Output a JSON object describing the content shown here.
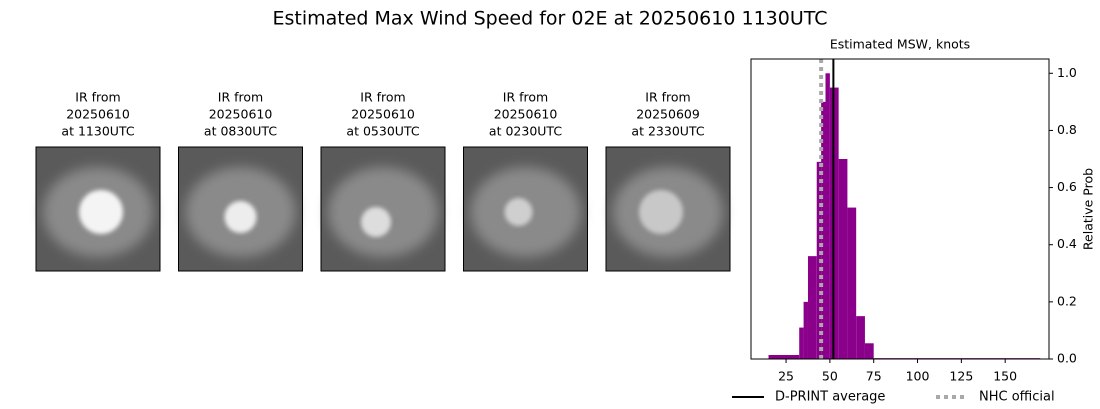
{
  "title": "Estimated Max Wind Speed for 02E at 20250610 1130UTC",
  "panels": [
    {
      "lines": [
        "IR from",
        "20250610",
        "at 1130UTC"
      ]
    },
    {
      "lines": [
        "IR from",
        "20250610",
        "at 0830UTC"
      ]
    },
    {
      "lines": [
        "IR from",
        "20250610",
        "at 0530UTC"
      ]
    },
    {
      "lines": [
        "IR from",
        "20250610",
        "at 0230UTC"
      ]
    },
    {
      "lines": [
        "IR from",
        "20250609",
        "at 2330UTC"
      ]
    }
  ],
  "chart_data": {
    "type": "histogram",
    "title": "Estimated MSW, knots",
    "ylabel": "Relative Prob",
    "bins": [
      15,
      32.5,
      35,
      37.5,
      42.5,
      45,
      47.5,
      50,
      55,
      60,
      65,
      70,
      75,
      170
    ],
    "counts": [
      0.014,
      0.11,
      0.2,
      0.36,
      0.69,
      0.9,
      1.0,
      0.95,
      0.7,
      0.53,
      0.15,
      0.055,
      0.003
    ],
    "color": "#8b008b",
    "xlim": [
      5,
      175
    ],
    "xticks": [
      25,
      50,
      75,
      100,
      125,
      150
    ],
    "ylim": [
      0,
      1.05
    ],
    "yticks": [
      {
        "value": 0,
        "label": "0.0"
      },
      {
        "value": 0.2,
        "label": "0.2"
      },
      {
        "value": 0.4,
        "label": "0.4"
      },
      {
        "value": 0.6,
        "label": "0.6"
      },
      {
        "value": 0.8,
        "label": "0.8"
      },
      {
        "value": 1.0,
        "label": "1.0"
      }
    ],
    "lines": [
      {
        "name": "D-PRINT average",
        "x": 52,
        "color": "#000000",
        "style": "solid"
      },
      {
        "name": "NHC official",
        "x": 45,
        "color": "#a9a9a9",
        "style": "dotted"
      }
    ]
  }
}
